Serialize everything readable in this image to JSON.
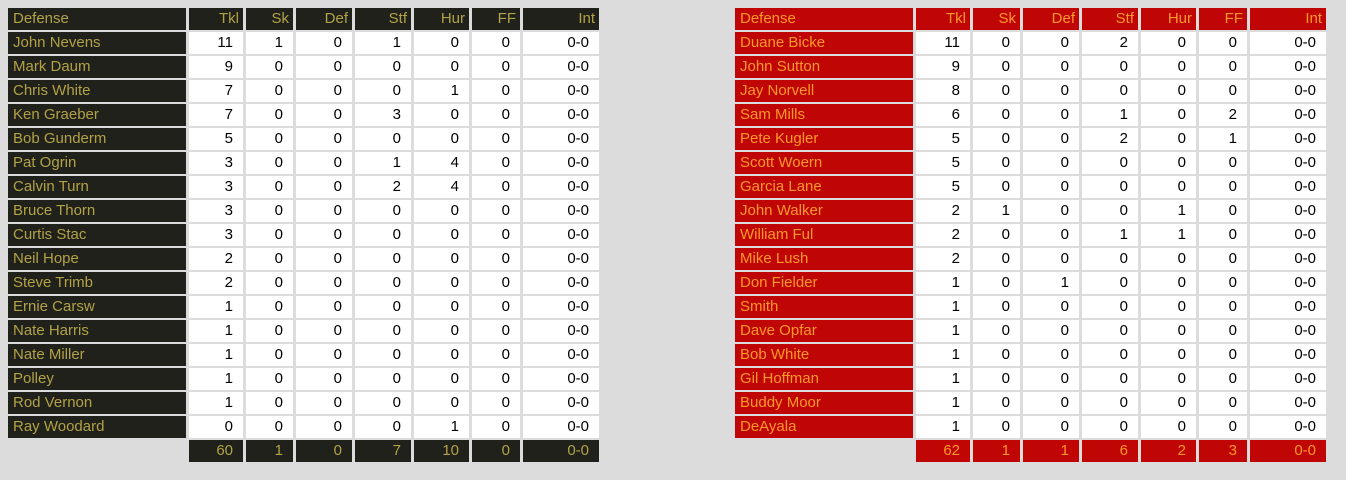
{
  "page": {
    "background": "#dcdcdc"
  },
  "columns": [
    "Defense",
    "Tkl",
    "Sk",
    "Def",
    "Stf",
    "Hur",
    "FF",
    "Int"
  ],
  "tables": [
    {
      "name": "home-defense-table",
      "theme": {
        "header_bg": "#21211b",
        "header_text": "#b1a245",
        "cell_bg": "#ffffff",
        "cell_text": "#000000"
      },
      "rows": [
        [
          "John Nevens",
          "11",
          "1",
          "0",
          "1",
          "0",
          "0",
          "0-0"
        ],
        [
          "Mark Daum",
          "9",
          "0",
          "0",
          "0",
          "0",
          "0",
          "0-0"
        ],
        [
          "Chris White",
          "7",
          "0",
          "0",
          "0",
          "1",
          "0",
          "0-0"
        ],
        [
          "Ken Graeber",
          "7",
          "0",
          "0",
          "3",
          "0",
          "0",
          "0-0"
        ],
        [
          "Bob Gunderm",
          "5",
          "0",
          "0",
          "0",
          "0",
          "0",
          "0-0"
        ],
        [
          "Pat Ogrin",
          "3",
          "0",
          "0",
          "1",
          "4",
          "0",
          "0-0"
        ],
        [
          "Calvin Turn",
          "3",
          "0",
          "0",
          "2",
          "4",
          "0",
          "0-0"
        ],
        [
          "Bruce Thorn",
          "3",
          "0",
          "0",
          "0",
          "0",
          "0",
          "0-0"
        ],
        [
          "Curtis Stac",
          "3",
          "0",
          "0",
          "0",
          "0",
          "0",
          "0-0"
        ],
        [
          "Neil Hope",
          "2",
          "0",
          "0",
          "0",
          "0",
          "0",
          "0-0"
        ],
        [
          "Steve Trimb",
          "2",
          "0",
          "0",
          "0",
          "0",
          "0",
          "0-0"
        ],
        [
          "Ernie Carsw",
          "1",
          "0",
          "0",
          "0",
          "0",
          "0",
          "0-0"
        ],
        [
          "Nate Harris",
          "1",
          "0",
          "0",
          "0",
          "0",
          "0",
          "0-0"
        ],
        [
          "Nate Miller",
          "1",
          "0",
          "0",
          "0",
          "0",
          "0",
          "0-0"
        ],
        [
          "Polley",
          "1",
          "0",
          "0",
          "0",
          "0",
          "0",
          "0-0"
        ],
        [
          "Rod Vernon",
          "1",
          "0",
          "0",
          "0",
          "0",
          "0",
          "0-0"
        ],
        [
          "Ray Woodard",
          "0",
          "0",
          "0",
          "0",
          "1",
          "0",
          "0-0"
        ]
      ],
      "totals": [
        "",
        "60",
        "1",
        "0",
        "7",
        "10",
        "0",
        "0-0"
      ]
    },
    {
      "name": "away-defense-table",
      "theme": {
        "header_bg": "#c00505",
        "header_text": "#ff9928",
        "cell_bg": "#ffffff",
        "cell_text": "#000000"
      },
      "rows": [
        [
          "Duane Bicke",
          "11",
          "0",
          "0",
          "2",
          "0",
          "0",
          "0-0"
        ],
        [
          "John Sutton",
          "9",
          "0",
          "0",
          "0",
          "0",
          "0",
          "0-0"
        ],
        [
          "Jay Norvell",
          "8",
          "0",
          "0",
          "0",
          "0",
          "0",
          "0-0"
        ],
        [
          "Sam Mills",
          "6",
          "0",
          "0",
          "1",
          "0",
          "2",
          "0-0"
        ],
        [
          "Pete Kugler",
          "5",
          "0",
          "0",
          "2",
          "0",
          "1",
          "0-0"
        ],
        [
          "Scott Woern",
          "5",
          "0",
          "0",
          "0",
          "0",
          "0",
          "0-0"
        ],
        [
          "Garcia Lane",
          "5",
          "0",
          "0",
          "0",
          "0",
          "0",
          "0-0"
        ],
        [
          "John Walker",
          "2",
          "1",
          "0",
          "0",
          "1",
          "0",
          "0-0"
        ],
        [
          "William Ful",
          "2",
          "0",
          "0",
          "1",
          "1",
          "0",
          "0-0"
        ],
        [
          "Mike Lush",
          "2",
          "0",
          "0",
          "0",
          "0",
          "0",
          "0-0"
        ],
        [
          "Don Fielder",
          "1",
          "0",
          "1",
          "0",
          "0",
          "0",
          "0-0"
        ],
        [
          "Smith",
          "1",
          "0",
          "0",
          "0",
          "0",
          "0",
          "0-0"
        ],
        [
          "Dave Opfar",
          "1",
          "0",
          "0",
          "0",
          "0",
          "0",
          "0-0"
        ],
        [
          "Bob White",
          "1",
          "0",
          "0",
          "0",
          "0",
          "0",
          "0-0"
        ],
        [
          "Gil Hoffman",
          "1",
          "0",
          "0",
          "0",
          "0",
          "0",
          "0-0"
        ],
        [
          "Buddy Moor",
          "1",
          "0",
          "0",
          "0",
          "0",
          "0",
          "0-0"
        ],
        [
          "DeAyala",
          "1",
          "0",
          "0",
          "0",
          "0",
          "0",
          "0-0"
        ]
      ],
      "totals": [
        "",
        "62",
        "1",
        "1",
        "6",
        "2",
        "3",
        "0-0"
      ]
    }
  ]
}
